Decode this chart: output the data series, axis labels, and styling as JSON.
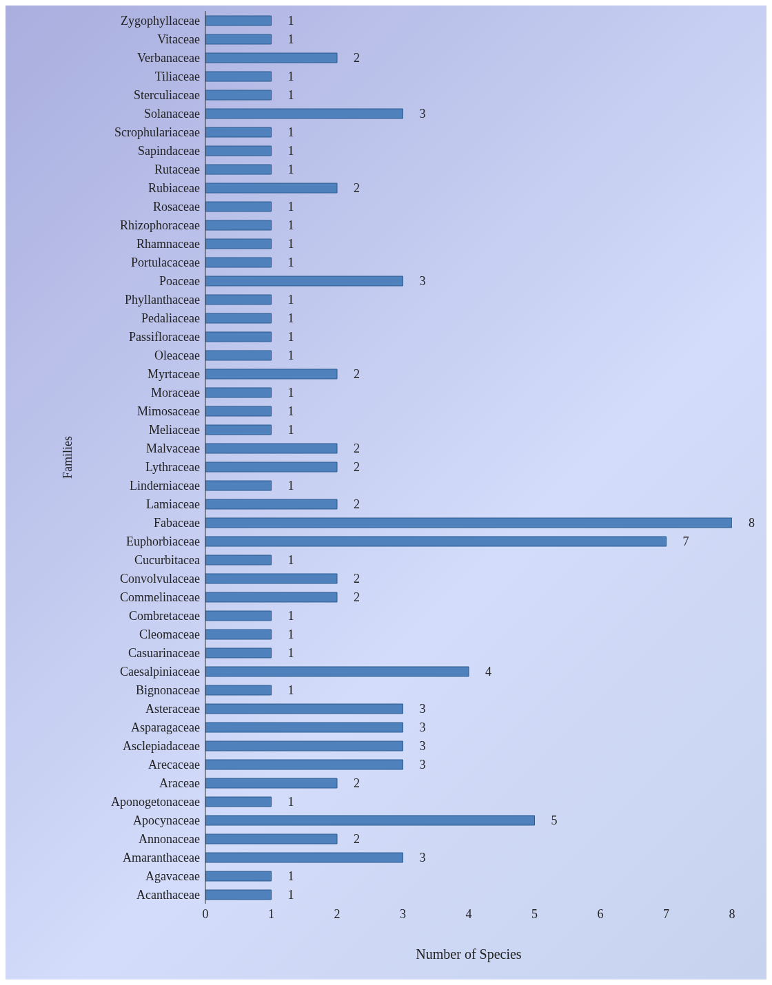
{
  "chart_data": {
    "type": "bar",
    "orientation": "horizontal",
    "xlabel": "Number of Species",
    "ylabel": "Families",
    "categories": [
      "Zygophyllaceae",
      "Vitaceae",
      "Verbanaceae",
      "Tiliaceae",
      "Sterculiaceae",
      "Solanaceae",
      "Scrophulariaceae",
      "Sapindaceae",
      "Rutaceae",
      "Rubiaceae",
      "Rosaceae",
      "Rhizophoraceae",
      "Rhamnaceae",
      "Portulacaceae",
      "Poaceae",
      "Phyllanthaceae",
      "Pedaliaceae",
      "Passifloraceae",
      "Oleaceae",
      "Myrtaceae",
      "Moraceae",
      "Mimosaceae",
      "Meliaceae",
      "Malvaceae",
      "Lythraceae",
      "Linderniaceae",
      "Lamiaceae",
      "Fabaceae",
      "Euphorbiaceae",
      "Cucurbitacea",
      "Convolvulaceae",
      "Commelinaceae",
      "Combretaceae",
      "Cleomaceae",
      "Casuarinaceae",
      "Caesalpiniaceae",
      "Bignonaceae",
      "Asteraceae",
      "Asparagaceae",
      "Asclepiadaceae",
      "Arecaceae",
      "Araceae",
      "Aponogetonaceae",
      "Apocynaceae",
      "Annonaceae",
      "Amaranthaceae",
      "Agavaceae",
      "Acanthaceae"
    ],
    "values": [
      1,
      1,
      2,
      1,
      1,
      3,
      1,
      1,
      1,
      2,
      1,
      1,
      1,
      1,
      3,
      1,
      1,
      1,
      1,
      2,
      1,
      1,
      1,
      2,
      2,
      1,
      2,
      8,
      7,
      1,
      2,
      2,
      1,
      1,
      1,
      4,
      1,
      3,
      3,
      3,
      3,
      2,
      1,
      5,
      2,
      3,
      1,
      1
    ],
    "color": "#4f81bd",
    "xlim": [
      0,
      8
    ],
    "xticks": [
      0,
      1,
      2,
      3,
      4,
      5,
      6,
      7,
      8
    ],
    "grid": false,
    "legend": false,
    "data_labels": true
  }
}
